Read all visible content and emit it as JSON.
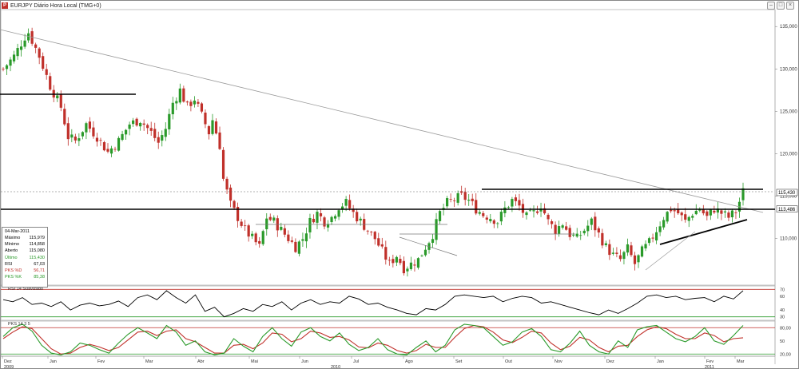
{
  "window": {
    "title": "EURJPY Diário Hora Local (TMG+0)",
    "logo": "P"
  },
  "info_box": {
    "date": "04-Mar-2011",
    "rows": [
      {
        "label": "Máximo",
        "value": "115,979",
        "color": "#000000"
      },
      {
        "label": "Mínimo",
        "value": "114,858",
        "color": "#000000"
      },
      {
        "label": "Aberto",
        "value": "115,080",
        "color": "#000000"
      },
      {
        "label": "Último",
        "value": "115,430",
        "color": "#2a9a2a"
      },
      {
        "label": "RSI",
        "value": "67,03",
        "color": "#000000"
      },
      {
        "label": "PKS %D",
        "value": "56,71",
        "color": "#c0302a"
      },
      {
        "label": "PKS %K",
        "value": "85,38",
        "color": "#2a9a2a"
      }
    ]
  },
  "panes": {
    "rsi_label": "RSI 14 Suavizado",
    "pks_label": "PKS 14 3 5"
  },
  "colors": {
    "up": "#2a9a2a",
    "down": "#c0302a",
    "line": "#000000",
    "trend": "#9a9a9a",
    "pks_k": "#2a9a2a",
    "pks_d": "#c0302a"
  },
  "chart_data": [
    {
      "type": "candlestick",
      "title": "EURJPY Diário Hora Local (TMG+0)",
      "ylim": [
        104.5,
        137
      ],
      "y_ticks": [
        "110,000",
        "115,000",
        "120,000",
        "125,000",
        "130,000",
        "135,000"
      ],
      "y_tick_values": [
        110,
        115,
        120,
        125,
        130,
        135
      ],
      "price_tags": [
        {
          "label": "115,430",
          "value": 115.43
        },
        {
          "label": "113,486",
          "value": 113.486
        }
      ],
      "x_months": [
        "Dez",
        "Jan",
        "Fev",
        "Mar",
        "Abr",
        "Mai",
        "Jun",
        "Jul",
        "Ago",
        "Set",
        "Out",
        "Nov",
        "Dez",
        "Jan",
        "Fev",
        "Mar"
      ],
      "x_years": [
        "2009",
        "2010",
        "2011"
      ],
      "close_path": [
        [
          0,
          130.0
        ],
        [
          3,
          131.5
        ],
        [
          6,
          133.8
        ],
        [
          7,
          134.3
        ],
        [
          10,
          131.5
        ],
        [
          13,
          128.0
        ],
        [
          16,
          125.5
        ],
        [
          18,
          122.0
        ],
        [
          20,
          121.5
        ],
        [
          23,
          123.5
        ],
        [
          26,
          122.0
        ],
        [
          29,
          120.2
        ],
        [
          32,
          121.5
        ],
        [
          35,
          123.5
        ],
        [
          38,
          124.0
        ],
        [
          41,
          122.5
        ],
        [
          43,
          121.3
        ],
        [
          45,
          123.0
        ],
        [
          47,
          126.0
        ],
        [
          49,
          127.5
        ],
        [
          51,
          125.5
        ],
        [
          53,
          126.5
        ],
        [
          55,
          124.5
        ],
        [
          57,
          122.5
        ],
        [
          58,
          124.0
        ],
        [
          59,
          122.5
        ],
        [
          60,
          121.0
        ],
        [
          61,
          117.0
        ],
        [
          62,
          115.5
        ],
        [
          63,
          114.0
        ],
        [
          65,
          112.5
        ],
        [
          67,
          111.0
        ],
        [
          69,
          110.0
        ],
        [
          71,
          109.0
        ],
        [
          73,
          112.5
        ],
        [
          75,
          112.0
        ],
        [
          77,
          111.0
        ],
        [
          79,
          110.0
        ],
        [
          81,
          109.0
        ],
        [
          83,
          110.0
        ],
        [
          85,
          112.0
        ],
        [
          87,
          113.0
        ],
        [
          89,
          112.0
        ],
        [
          91,
          112.5
        ],
        [
          93,
          113.8
        ],
        [
          95,
          114.2
        ],
        [
          97,
          113.0
        ],
        [
          99,
          112.0
        ],
        [
          101,
          111.0
        ],
        [
          103,
          110.0
        ],
        [
          105,
          108.5
        ],
        [
          107,
          107.0
        ],
        [
          109,
          108.0
        ],
        [
          111,
          106.5
        ],
        [
          113,
          107.0
        ],
        [
          115,
          107.5
        ],
        [
          117,
          109.0
        ],
        [
          119,
          110.5
        ],
        [
          121,
          113.0
        ],
        [
          123,
          114.2
        ],
        [
          125,
          114.6
        ],
        [
          127,
          115.0
        ],
        [
          129,
          114.5
        ],
        [
          131,
          113.5
        ],
        [
          133,
          112.8
        ],
        [
          135,
          112.5
        ],
        [
          137,
          112.0
        ],
        [
          139,
          113.5
        ],
        [
          141,
          114.5
        ],
        [
          143,
          113.8
        ],
        [
          145,
          112.5
        ],
        [
          147,
          113.0
        ],
        [
          149,
          114.0
        ],
        [
          151,
          112.0
        ],
        [
          153,
          111.0
        ],
        [
          155,
          111.8
        ],
        [
          157,
          110.5
        ],
        [
          159,
          110.0
        ],
        [
          161,
          111.0
        ],
        [
          163,
          112.0
        ],
        [
          165,
          110.5
        ],
        [
          167,
          109.0
        ],
        [
          169,
          108.0
        ],
        [
          171,
          107.5
        ],
        [
          173,
          108.8
        ],
        [
          175,
          107.0
        ],
        [
          177,
          108.5
        ],
        [
          179,
          109.5
        ],
        [
          181,
          111.0
        ],
        [
          183,
          112.5
        ],
        [
          185,
          113.5
        ],
        [
          187,
          113.0
        ],
        [
          189,
          112.0
        ],
        [
          191,
          113.0
        ],
        [
          193,
          113.5
        ],
        [
          195,
          112.5
        ],
        [
          197,
          113.5
        ],
        [
          199,
          113.0
        ],
        [
          201,
          112.5
        ],
        [
          203,
          113.2
        ],
        [
          205,
          115.5
        ]
      ]
    },
    {
      "type": "line",
      "title": "RSI 14 Suavizado",
      "ylim": [
        25,
        75
      ],
      "y_ticks": [
        "30",
        "40",
        "60",
        "70"
      ],
      "y_tick_values": [
        30,
        40,
        60,
        70
      ],
      "levels": [
        30,
        70
      ],
      "series": [
        {
          "values": [
            55,
            52,
            58,
            48,
            50,
            45,
            52,
            40,
            47,
            50,
            46,
            48,
            53,
            45,
            58,
            62,
            55,
            68,
            58,
            50,
            62,
            38,
            44,
            30,
            35,
            42,
            38,
            48,
            45,
            52,
            40,
            50,
            55,
            48,
            52,
            50,
            60,
            56,
            48,
            50,
            44,
            40,
            35,
            33,
            42,
            40,
            48,
            60,
            62,
            60,
            58,
            60,
            52,
            57,
            60,
            58,
            50,
            52,
            48,
            44,
            40,
            36,
            33,
            40,
            35,
            42,
            50,
            60,
            62,
            58,
            60,
            55,
            57,
            58,
            52,
            60,
            56,
            68
          ]
        }
      ]
    },
    {
      "type": "line",
      "title": "PKS 14 3 5",
      "ylim": [
        15,
        95
      ],
      "y_ticks": [
        "20,00",
        "50",
        "80,00"
      ],
      "y_tick_values": [
        20,
        50,
        80
      ],
      "levels": [
        20,
        80
      ],
      "series": [
        {
          "name": "PKS %K",
          "values": [
            60,
            80,
            88,
            72,
            40,
            22,
            18,
            25,
            45,
            40,
            30,
            22,
            45,
            65,
            80,
            68,
            55,
            85,
            70,
            40,
            50,
            25,
            18,
            22,
            55,
            38,
            25,
            60,
            80,
            55,
            38,
            70,
            80,
            60,
            50,
            68,
            42,
            28,
            35,
            55,
            30,
            20,
            18,
            35,
            50,
            25,
            40,
            75,
            88,
            85,
            80,
            60,
            40,
            48,
            70,
            78,
            60,
            30,
            25,
            45,
            72,
            40,
            25,
            20,
            50,
            35,
            75,
            82,
            85,
            70,
            55,
            48,
            60,
            80,
            50,
            42,
            62,
            85
          ]
        },
        {
          "name": "PKS %D",
          "values": [
            55,
            70,
            82,
            78,
            55,
            32,
            20,
            22,
            35,
            42,
            36,
            28,
            35,
            52,
            70,
            72,
            62,
            72,
            75,
            55,
            48,
            35,
            22,
            22,
            40,
            42,
            32,
            45,
            68,
            65,
            48,
            55,
            72,
            68,
            58,
            60,
            52,
            36,
            34,
            45,
            40,
            28,
            22,
            28,
            42,
            35,
            35,
            58,
            78,
            85,
            82,
            70,
            52,
            46,
            58,
            72,
            68,
            45,
            30,
            38,
            58,
            52,
            35,
            25,
            38,
            40,
            60,
            75,
            82,
            78,
            65,
            55,
            55,
            68,
            62,
            48,
            55,
            57
          ]
        }
      ]
    }
  ]
}
